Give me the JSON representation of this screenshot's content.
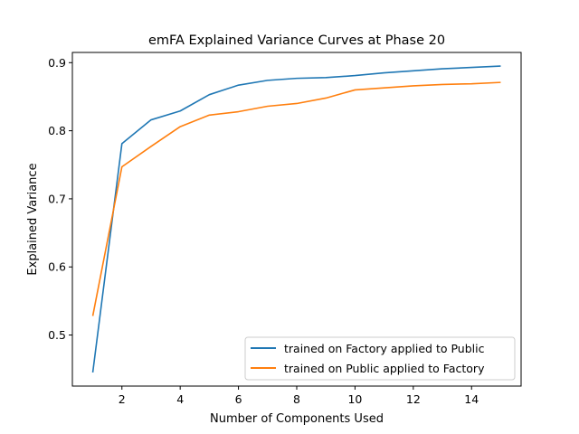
{
  "chart_data": {
    "type": "line",
    "title": "emFA Explained Variance Curves at Phase 20",
    "xlabel": "Number of Components Used",
    "ylabel": "Explained Variance",
    "x": [
      1,
      2,
      3,
      4,
      5,
      6,
      7,
      8,
      9,
      10,
      11,
      12,
      13,
      14,
      15
    ],
    "xlim": [
      0.3,
      15.7
    ],
    "ylim": [
      0.425,
      0.915
    ],
    "xticks": [
      2,
      4,
      6,
      8,
      10,
      12,
      14
    ],
    "yticks": [
      0.5,
      0.6,
      0.7,
      0.8,
      0.9
    ],
    "xtick_labels": [
      "2",
      "4",
      "6",
      "8",
      "10",
      "12",
      "14"
    ],
    "ytick_labels": [
      "0.5",
      "0.6",
      "0.7",
      "0.8",
      "0.9"
    ],
    "grid": false,
    "legend_position": "lower-right",
    "series": [
      {
        "name": "trained on Factory applied to Public",
        "color": "#1f77b4",
        "values": [
          0.445,
          0.781,
          0.816,
          0.829,
          0.853,
          0.867,
          0.874,
          0.877,
          0.878,
          0.881,
          0.885,
          0.888,
          0.891,
          0.893,
          0.895
        ]
      },
      {
        "name": "trained on Public applied to Factory",
        "color": "#ff7f0e",
        "values": [
          0.528,
          0.747,
          0.777,
          0.806,
          0.823,
          0.828,
          0.836,
          0.84,
          0.848,
          0.86,
          0.863,
          0.866,
          0.868,
          0.869,
          0.871
        ]
      }
    ]
  }
}
